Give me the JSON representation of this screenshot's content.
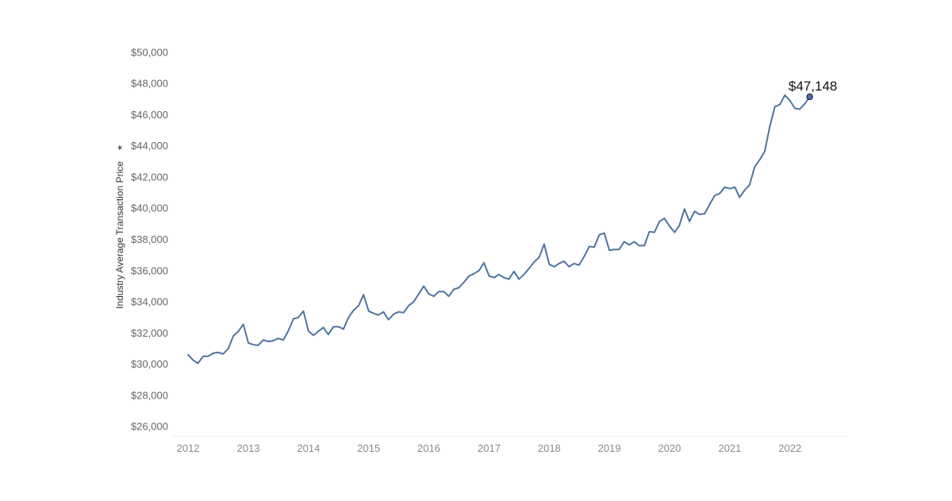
{
  "chart_data": {
    "type": "line",
    "ylabel": "Industry Average Transaction Price",
    "ylabel_icon": "sort-indicator-icon",
    "ylim": [
      25600,
      50400
    ],
    "xlim": [
      "2011-10-01",
      "2022-12-15"
    ],
    "y_ticks": [
      26000,
      28000,
      30000,
      32000,
      34000,
      36000,
      38000,
      40000,
      42000,
      44000,
      46000,
      48000,
      50000
    ],
    "y_tick_labels": [
      "$26,000",
      "$28,000",
      "$30,000",
      "$32,000",
      "$34,000",
      "$36,000",
      "$38,000",
      "$40,000",
      "$42,000",
      "$44,000",
      "$46,000",
      "$48,000",
      "$50,000"
    ],
    "x_ticks": [
      "2012-01-01",
      "2013-01-01",
      "2014-01-01",
      "2015-01-01",
      "2016-01-01",
      "2017-01-01",
      "2018-01-01",
      "2019-01-01",
      "2020-01-01",
      "2021-01-01",
      "2022-01-01"
    ],
    "x_tick_labels": [
      "2012",
      "2013",
      "2014",
      "2015",
      "2016",
      "2017",
      "2018",
      "2019",
      "2020",
      "2021",
      "2022"
    ],
    "grid": false,
    "line_color": "#4e74a0",
    "marker_color": "#4e74a0",
    "annotation": {
      "text": "$47,148",
      "x": "2022-05-01",
      "y": 47148
    },
    "series": [
      {
        "x": [
          "2012-01-01",
          "2012-02-01",
          "2012-03-01",
          "2012-04-01",
          "2012-05-01",
          "2012-06-01",
          "2012-07-01",
          "2012-08-01",
          "2012-09-01",
          "2012-10-01",
          "2012-11-01",
          "2012-12-01",
          "2013-01-01",
          "2013-02-01",
          "2013-03-01",
          "2013-04-01",
          "2013-05-01",
          "2013-06-01",
          "2013-07-01",
          "2013-08-01",
          "2013-09-01",
          "2013-10-01",
          "2013-11-01",
          "2013-12-01",
          "2014-01-01",
          "2014-02-01",
          "2014-03-01",
          "2014-04-01",
          "2014-05-01",
          "2014-06-01",
          "2014-07-01",
          "2014-08-01",
          "2014-09-01",
          "2014-10-01",
          "2014-11-01",
          "2014-12-01",
          "2015-01-01",
          "2015-02-01",
          "2015-03-01",
          "2015-04-01",
          "2015-05-01",
          "2015-06-01",
          "2015-07-01",
          "2015-08-01",
          "2015-09-01",
          "2015-10-01",
          "2015-11-01",
          "2015-12-01",
          "2016-01-01",
          "2016-02-01",
          "2016-03-01",
          "2016-04-01",
          "2016-05-01",
          "2016-06-01",
          "2016-07-01",
          "2016-08-01",
          "2016-09-01",
          "2016-10-01",
          "2016-11-01",
          "2016-12-01",
          "2017-01-01",
          "2017-02-01",
          "2017-03-01",
          "2017-04-01",
          "2017-05-01",
          "2017-06-01",
          "2017-07-01",
          "2017-08-01",
          "2017-09-01",
          "2017-10-01",
          "2017-11-01",
          "2017-12-01",
          "2018-01-01",
          "2018-02-01",
          "2018-03-01",
          "2018-04-01",
          "2018-05-01",
          "2018-06-01",
          "2018-07-01",
          "2018-08-01",
          "2018-09-01",
          "2018-10-01",
          "2018-11-01",
          "2018-12-01",
          "2019-01-01",
          "2019-02-01",
          "2019-03-01",
          "2019-04-01",
          "2019-05-01",
          "2019-06-01",
          "2019-07-01",
          "2019-08-01",
          "2019-09-01",
          "2019-10-01",
          "2019-11-01",
          "2019-12-01",
          "2020-01-01",
          "2020-02-01",
          "2020-03-01",
          "2020-04-01",
          "2020-05-01",
          "2020-06-01",
          "2020-07-01",
          "2020-08-01",
          "2020-09-01",
          "2020-10-01",
          "2020-11-01",
          "2020-12-01",
          "2021-01-01",
          "2021-02-01",
          "2021-03-01",
          "2021-04-01",
          "2021-05-01",
          "2021-06-01",
          "2021-07-01",
          "2021-08-01",
          "2021-09-01",
          "2021-10-01",
          "2021-11-01",
          "2021-12-01",
          "2022-01-01",
          "2022-02-01",
          "2022-03-01",
          "2022-04-01",
          "2022-05-01"
        ],
        "values": [
          30600,
          30250,
          30050,
          30500,
          30500,
          30700,
          30750,
          30650,
          31000,
          31800,
          32100,
          32550,
          31350,
          31250,
          31200,
          31550,
          31450,
          31500,
          31650,
          31550,
          32150,
          32900,
          33000,
          33400,
          32100,
          31850,
          32100,
          32350,
          31900,
          32400,
          32400,
          32250,
          33000,
          33450,
          33750,
          34450,
          33400,
          33250,
          33150,
          33350,
          32850,
          33200,
          33350,
          33300,
          33750,
          34000,
          34500,
          35000,
          34500,
          34350,
          34650,
          34650,
          34350,
          34800,
          34900,
          35250,
          35650,
          35800,
          36000,
          36500,
          35650,
          35550,
          35750,
          35550,
          35450,
          35950,
          35450,
          35750,
          36150,
          36550,
          36850,
          37700,
          36400,
          36250,
          36450,
          36600,
          36250,
          36450,
          36350,
          36900,
          37550,
          37500,
          38300,
          38400,
          37300,
          37350,
          37350,
          37850,
          37650,
          37850,
          37600,
          37600,
          38500,
          38450,
          39150,
          39350,
          38850,
          38450,
          38900,
          39950,
          39150,
          39800,
          39600,
          39650,
          40250,
          40800,
          40950,
          41350,
          41250,
          41350,
          40700,
          41150,
          41500,
          42650,
          43100,
          43650,
          45250,
          46500,
          46650,
          47250,
          46900,
          46400,
          46350,
          46700,
          47148
        ]
      }
    ]
  }
}
